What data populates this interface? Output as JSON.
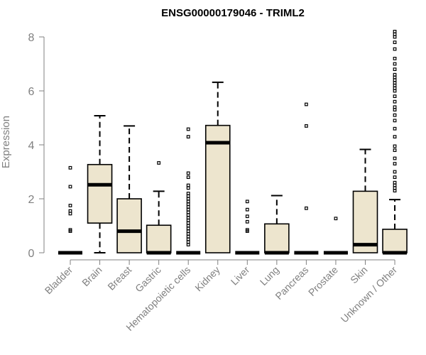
{
  "chart_data": {
    "type": "box",
    "title": "ENSG00000179046 - TRIML2",
    "xlabel": "",
    "ylabel": "Expression",
    "ylim": [
      0,
      8
    ],
    "yticks": [
      0,
      2,
      4,
      6,
      8
    ],
    "categories": [
      "Bladder",
      "Brain",
      "Breast",
      "Gastric",
      "Hematopoietic cells",
      "Kidney",
      "Liver",
      "Lung",
      "Pancreas",
      "Prostate",
      "Skin",
      "Unknown / Other"
    ],
    "boxes": [
      {
        "name": "Bladder",
        "whisker_low": 0,
        "q1": 0,
        "median": 0,
        "q3": 0,
        "whisker_high": 0,
        "outliers": [
          0.8,
          0.85,
          1.45,
          1.55,
          1.75,
          2.45,
          3.15
        ]
      },
      {
        "name": "Brain",
        "whisker_low": 0,
        "q1": 1.1,
        "median": 2.52,
        "q3": 3.27,
        "whisker_high": 5.08,
        "outliers": []
      },
      {
        "name": "Breast",
        "whisker_low": 0,
        "q1": 0,
        "median": 0.8,
        "q3": 2.0,
        "whisker_high": 4.7,
        "outliers": []
      },
      {
        "name": "Gastric",
        "whisker_low": 0,
        "q1": 0,
        "median": 0,
        "q3": 1.02,
        "whisker_high": 2.28,
        "outliers": [
          3.33
        ]
      },
      {
        "name": "Hematopoietic cells",
        "whisker_low": 0,
        "q1": 0,
        "median": 0,
        "q3": 0,
        "whisker_high": 0,
        "outliers": [
          0.3,
          0.4,
          0.5,
          0.6,
          0.7,
          0.8,
          0.9,
          1.0,
          1.1,
          1.2,
          1.3,
          1.4,
          1.5,
          1.6,
          1.7,
          1.8,
          1.9,
          2.0,
          2.1,
          2.2,
          2.4,
          2.5,
          2.8,
          2.95,
          4.3,
          4.58
        ]
      },
      {
        "name": "Kidney",
        "whisker_low": 0,
        "q1": 0,
        "median": 4.08,
        "q3": 4.72,
        "whisker_high": 6.32,
        "outliers": []
      },
      {
        "name": "Liver",
        "whisker_low": 0,
        "q1": 0,
        "median": 0,
        "q3": 0,
        "whisker_high": 0,
        "outliers": [
          0.8,
          0.85,
          1.15,
          1.35,
          1.6,
          1.9
        ]
      },
      {
        "name": "Lung",
        "whisker_low": 0,
        "q1": 0,
        "median": 0,
        "q3": 1.07,
        "whisker_high": 2.12,
        "outliers": []
      },
      {
        "name": "Pancreas",
        "whisker_low": 0,
        "q1": 0,
        "median": 0,
        "q3": 0,
        "whisker_high": 0,
        "outliers": [
          1.65,
          4.7,
          5.5
        ]
      },
      {
        "name": "Prostate",
        "whisker_low": 0,
        "q1": 0,
        "median": 0,
        "q3": 0,
        "whisker_high": 0,
        "outliers": [
          1.27
        ]
      },
      {
        "name": "Skin",
        "whisker_low": 0,
        "q1": 0,
        "median": 0.3,
        "q3": 2.28,
        "whisker_high": 3.83,
        "outliers": []
      },
      {
        "name": "Unknown / Other",
        "whisker_low": 0,
        "q1": 0,
        "median": 0,
        "q3": 0.87,
        "whisker_high": 1.97,
        "outliers": [
          2.3,
          2.4,
          2.5,
          2.6,
          2.8,
          3.0,
          3.3,
          3.5,
          3.8,
          3.95,
          4.3,
          4.6,
          4.9,
          5.1,
          5.3,
          5.4,
          5.6,
          5.8,
          6.0,
          6.1,
          6.2,
          6.3,
          6.4,
          6.5,
          6.6,
          6.8,
          7.0,
          7.2,
          7.55,
          7.8,
          8.0,
          8.1,
          8.2
        ]
      }
    ],
    "colors": {
      "box_fill": "#ede5ce",
      "stroke": "#000000",
      "axis": "#808080",
      "tick_text": "#808080"
    }
  }
}
